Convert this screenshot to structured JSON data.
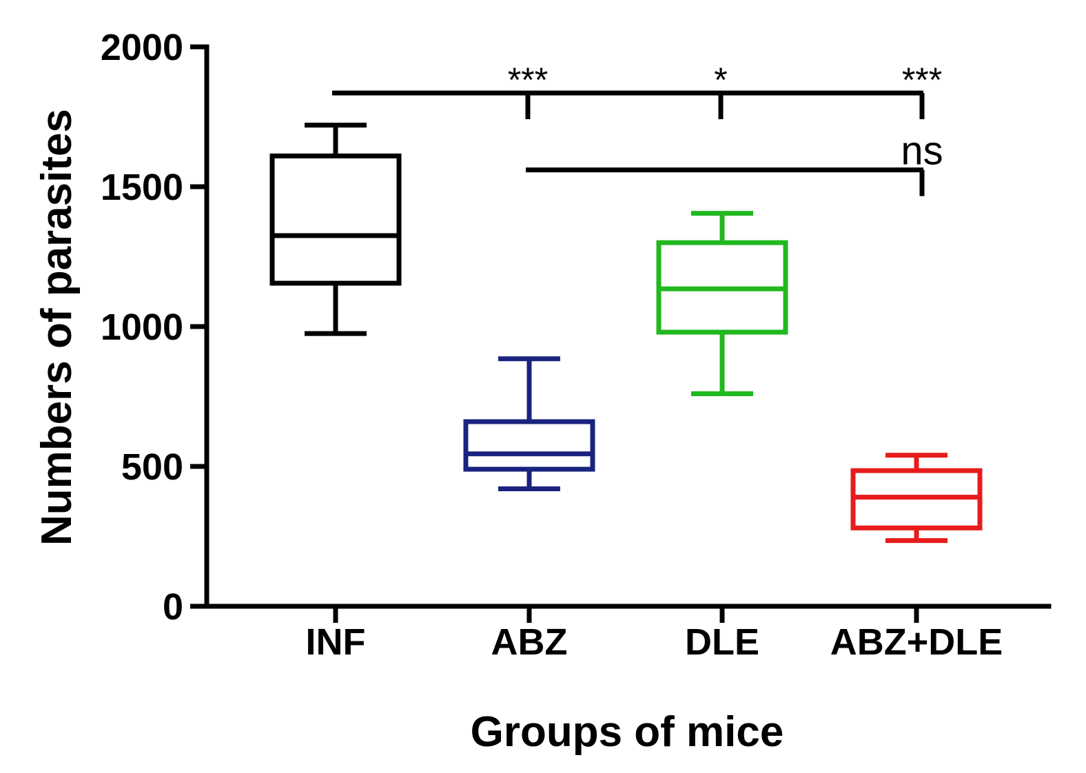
{
  "chart_data": {
    "type": "box",
    "title": "",
    "xlabel": "Groups of mice",
    "ylabel": "Numbers of parasites",
    "ylim": [
      0,
      2000
    ],
    "yticks": [
      0,
      500,
      1000,
      1500,
      2000
    ],
    "ytick_labels": [
      "0",
      "500",
      "1000",
      "1500",
      "2000"
    ],
    "categories": [
      "INF",
      "ABZ",
      "DLE",
      "ABZ+DLE"
    ],
    "boxes": [
      {
        "name": "INF",
        "color": "#000000",
        "min": 975,
        "q1": 1155,
        "median": 1325,
        "q3": 1610,
        "max": 1720
      },
      {
        "name": "ABZ",
        "color": "#1a237e",
        "min": 420,
        "q1": 490,
        "median": 545,
        "q3": 660,
        "max": 885
      },
      {
        "name": "DLE",
        "color": "#21b820",
        "min": 760,
        "q1": 980,
        "median": 1135,
        "q3": 1300,
        "max": 1405
      },
      {
        "name": "ABZ+DLE",
        "color": "#e81c1c",
        "min": 235,
        "q1": 280,
        "median": 390,
        "q3": 485,
        "max": 540
      }
    ],
    "significance": [
      {
        "from": "INF",
        "drops": [
          "ABZ",
          "DLE",
          "ABZ+DLE"
        ],
        "labels": [
          "***",
          "*",
          "***"
        ],
        "level": 1835
      },
      {
        "from": "ABZ",
        "drops": [
          "ABZ+DLE"
        ],
        "labels": [
          "ns"
        ],
        "level": 1560
      }
    ]
  }
}
